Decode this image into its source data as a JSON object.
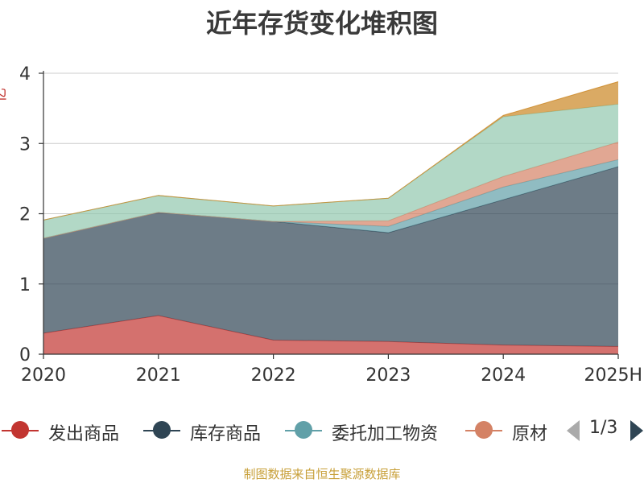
{
  "chart_data": {
    "type": "area",
    "stacked": true,
    "title": "近年存货变化堆积图",
    "ylabel": "亿",
    "xlabel": "",
    "categories": [
      "2020",
      "2021",
      "2022",
      "2023",
      "2024",
      "2025H"
    ],
    "ylim": [
      0,
      4
    ],
    "yticks": [
      "0",
      "1",
      "2",
      "3",
      "4"
    ],
    "grid": true,
    "series": [
      {
        "name": "发出商品",
        "color": "#c23531",
        "values": [
          0.3,
          0.55,
          0.2,
          0.18,
          0.13,
          0.11
        ]
      },
      {
        "name": "库存商品",
        "color": "#2f4554",
        "values": [
          1.35,
          1.47,
          1.69,
          1.55,
          2.07,
          2.56
        ]
      },
      {
        "name": "委托加工物资",
        "color": "#61a0a8",
        "values": [
          0.0,
          0.0,
          0.0,
          0.09,
          0.18,
          0.1
        ]
      },
      {
        "name": "原材料",
        "color": "#d48265",
        "values": [
          0.0,
          0.0,
          0.0,
          0.08,
          0.15,
          0.25
        ]
      },
      {
        "name": "",
        "color": "#91c7ae",
        "values": [
          0.26,
          0.24,
          0.22,
          0.32,
          0.85,
          0.54
        ]
      },
      {
        "name": "",
        "color": "#ca8622",
        "values": [
          0.0,
          0.0,
          0.0,
          0.0,
          0.02,
          0.32
        ]
      }
    ],
    "legend_position": "bottom",
    "legend_visible": [
      "发出商品",
      "库存商品",
      "委托加工物资",
      "原材"
    ],
    "legend_page": "1/3"
  },
  "footer": "制图数据来自恒生聚源数据库"
}
